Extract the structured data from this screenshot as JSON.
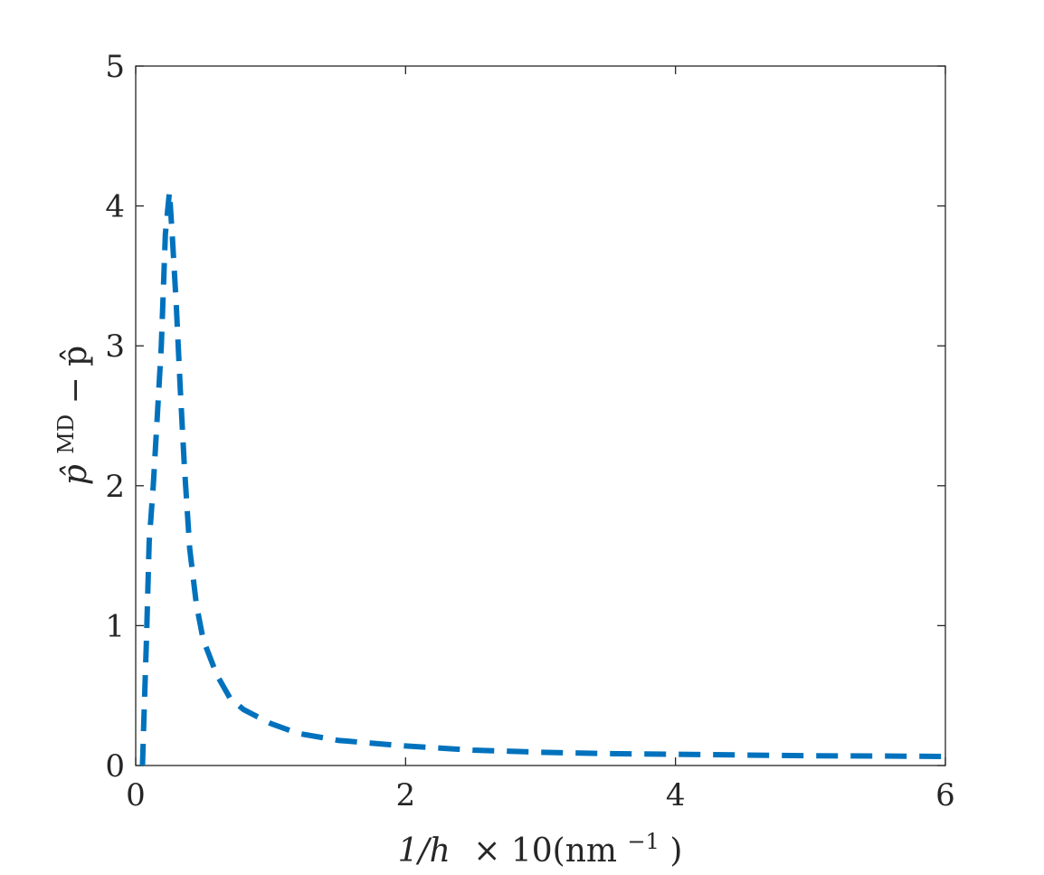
{
  "chart_data": {
    "type": "line",
    "xlabel": {
      "main": "1/h",
      "multiplier": "× 10(nm",
      "exponent": "−1",
      "close": ")"
    },
    "ylabel": {
      "base": "p̂",
      "superscript": "MD",
      "rest": " − p̂"
    },
    "xlim": [
      0,
      6
    ],
    "ylim": [
      0,
      5
    ],
    "xticks": [
      0,
      2,
      4,
      6
    ],
    "xtick_labels": [
      "0",
      "2",
      "4",
      "6"
    ],
    "yticks": [
      0,
      1,
      2,
      3,
      4,
      5
    ],
    "ytick_labels": [
      "0",
      "1",
      "2",
      "3",
      "4",
      "5"
    ],
    "grid": false,
    "box": true,
    "series": [
      {
        "style": "dashed",
        "color": "#0072BD",
        "x": [
          0.05,
          0.06,
          0.08,
          0.1,
          0.13,
          0.16,
          0.19,
          0.22,
          0.25,
          0.27,
          0.3,
          0.33,
          0.36,
          0.4,
          0.45,
          0.5,
          0.6,
          0.7,
          0.8,
          1.0,
          1.2,
          1.5,
          2.0,
          2.5,
          3.0,
          3.5,
          4.0,
          4.5,
          5.0,
          5.5,
          6.0
        ],
        "y": [
          0.0,
          0.3,
          0.9,
          1.6,
          2.0,
          2.5,
          3.0,
          3.8,
          4.1,
          3.8,
          3.3,
          2.7,
          2.15,
          1.55,
          1.15,
          0.9,
          0.65,
          0.48,
          0.4,
          0.3,
          0.23,
          0.18,
          0.14,
          0.11,
          0.095,
          0.085,
          0.08,
          0.075,
          0.07,
          0.068,
          0.065
        ]
      }
    ]
  }
}
